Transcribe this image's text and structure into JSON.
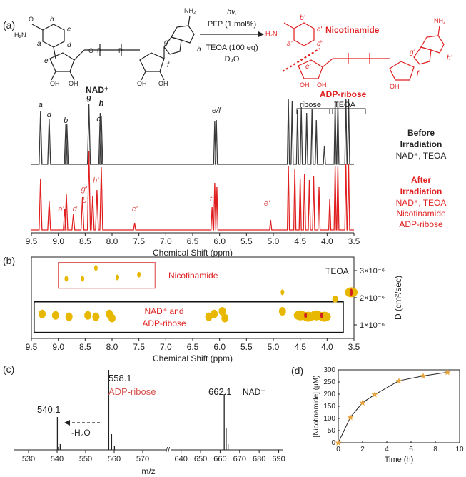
{
  "colors": {
    "black": "#3a3a3a",
    "red": "#e02020",
    "label_red": "#d9534f",
    "yellow": "#e8b800",
    "orange": "#e8a33a"
  },
  "panel_a": {
    "label": "(a)",
    "nad_name": "NAD⁺",
    "reaction": {
      "line1": "hv,",
      "line2": "PFP (1 mol%)",
      "line3": "TEOA (100 eq)",
      "line4": "D₂O"
    },
    "product1": "Nicotinamide",
    "product2": "ADP-ribose",
    "atom_labels": [
      "a",
      "b",
      "c",
      "d",
      "e",
      "f",
      "g",
      "h"
    ],
    "atom_labels_primed": [
      "a'",
      "b'",
      "c'",
      "d'",
      "e'",
      "f'",
      "g'",
      "h'"
    ],
    "group_labels": [
      "ribose",
      "TEOA"
    ],
    "spectrum_before": {
      "title1": "Before",
      "title2": "Irradiation",
      "sub": "NAD⁺, TEOA"
    },
    "spectrum_after": {
      "title1": "After",
      "title2": "Irradiation",
      "sub1": "NAD⁺, TEOA",
      "sub2": "Nicotinamide",
      "sub3": "ADP-ribose"
    },
    "peak_labels_before": [
      "a",
      "d",
      "b",
      "g",
      "c",
      "h",
      "e/f"
    ],
    "peak_labels_after": [
      "a'",
      "d'",
      "b'",
      "g'",
      "h'",
      "c'",
      "f'",
      "e'"
    ],
    "x_ticks": [
      "9.5",
      "9.0",
      "8.5",
      "8.0",
      "7.5",
      "7.0",
      "6.5",
      "6.0",
      "5.5",
      "5.0",
      "4.5",
      "4.0",
      "3.5"
    ],
    "x_label": "Chemical Shift (ppm)"
  },
  "panel_b": {
    "label": "(b)",
    "box1_label": "Nicotinamide",
    "box2_label1": "NAD⁺ and",
    "box2_label2": "ADP-ribose",
    "teoa_label": "TEOA",
    "y_ticks": [
      "3×10⁻⁶",
      "2×10⁻⁶",
      "1×10⁻⁶"
    ],
    "y_label": "D (cm²/sec)",
    "x_ticks": [
      "9.5",
      "9.0",
      "8.5",
      "8.0",
      "7.5",
      "7.0",
      "6.5",
      "6.0",
      "5.5",
      "5.0",
      "4.5",
      "4.0",
      "3.5"
    ],
    "x_label": "Chemical Shift (ppm)"
  },
  "panel_c": {
    "label": "(c)",
    "peak_labels": [
      "540.1",
      "558.1",
      "662.1"
    ],
    "adp_label": "ADP-ribose",
    "nad_label": "NAD⁺",
    "loss_label": "-H₂O",
    "x_ticks": [
      "530",
      "540",
      "550",
      "560",
      "570",
      "640",
      "650",
      "660",
      "670",
      "680",
      "690"
    ],
    "x_label": "m/z"
  },
  "chart_data": {
    "type": "line",
    "panel_label": "(d)",
    "xlabel": "Time (h)",
    "ylabel": "[Nicotinamide] (μM)",
    "x": [
      0,
      1,
      2,
      3,
      5,
      7,
      9
    ],
    "values": [
      0,
      105,
      165,
      198,
      255,
      275,
      290
    ],
    "xlim": [
      0,
      10
    ],
    "ylim": [
      0,
      300
    ],
    "x_ticks": [
      "0",
      "2",
      "4",
      "6",
      "8",
      "10"
    ],
    "y_ticks": [
      "0",
      "50",
      "100",
      "150",
      "200",
      "250",
      "300"
    ]
  }
}
